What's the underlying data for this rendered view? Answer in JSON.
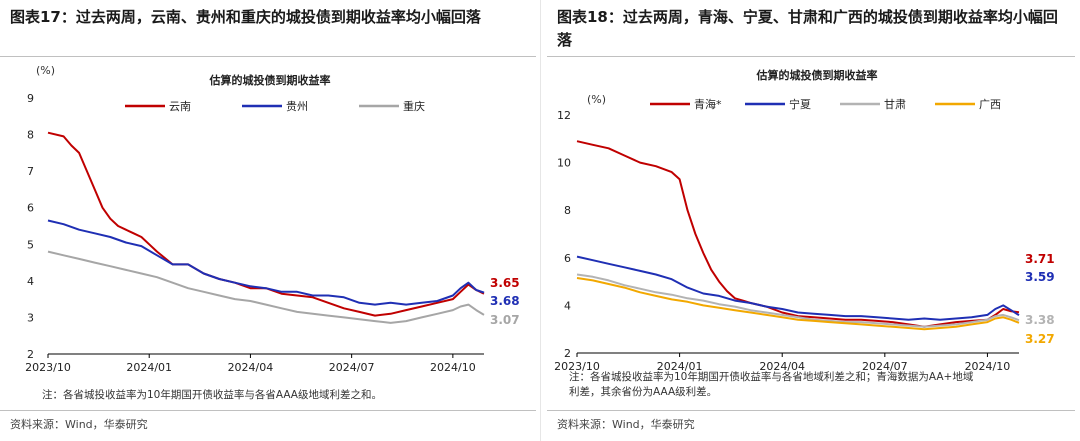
{
  "left": {
    "title": "图表17：过去两周，云南、贵州和重庆的城投债到期收益率均小幅回落",
    "note": "注：各省城投收益率为10年期国开债收益率与各省AAA级地域利差之和。",
    "source": "资料来源：Wind，华泰研究",
    "chart_data": {
      "type": "line",
      "title": "估算的城投债到期收益率",
      "ylabel": "(%)",
      "ylim": [
        2,
        9
      ],
      "yticks": [
        2,
        3,
        4,
        5,
        6,
        7,
        8,
        9
      ],
      "xlim": [
        0,
        56
      ],
      "xticks": [
        {
          "pos": 0,
          "label": "2023/10"
        },
        {
          "pos": 13,
          "label": "2024/01"
        },
        {
          "pos": 26,
          "label": "2024/04"
        },
        {
          "pos": 39,
          "label": "2024/07"
        },
        {
          "pos": 52,
          "label": "2024/10"
        }
      ],
      "series": [
        {
          "name": "云南",
          "color": "#c00000",
          "end_label": "3.65",
          "x": [
            0,
            2,
            3,
            4,
            5,
            6,
            7,
            8,
            9,
            10,
            11,
            12,
            13,
            14,
            16,
            18,
            20,
            22,
            24,
            26,
            28,
            30,
            32,
            34,
            36,
            38,
            40,
            42,
            44,
            46,
            48,
            50,
            52,
            53,
            54,
            55,
            56
          ],
          "y": [
            8.05,
            7.95,
            7.7,
            7.5,
            7.0,
            6.5,
            6.0,
            5.7,
            5.5,
            5.4,
            5.3,
            5.2,
            5.0,
            4.8,
            4.45,
            4.45,
            4.2,
            4.05,
            3.95,
            3.8,
            3.8,
            3.65,
            3.6,
            3.55,
            3.4,
            3.25,
            3.15,
            3.05,
            3.1,
            3.2,
            3.3,
            3.4,
            3.5,
            3.7,
            3.9,
            3.75,
            3.65
          ]
        },
        {
          "name": "贵州",
          "color": "#1f2fb4",
          "end_label": "3.68",
          "x": [
            0,
            2,
            4,
            6,
            8,
            10,
            12,
            14,
            16,
            18,
            20,
            22,
            24,
            26,
            28,
            30,
            32,
            34,
            36,
            38,
            40,
            42,
            44,
            46,
            48,
            50,
            52,
            53,
            54,
            55,
            56
          ],
          "y": [
            5.65,
            5.55,
            5.4,
            5.3,
            5.2,
            5.05,
            4.95,
            4.7,
            4.45,
            4.45,
            4.2,
            4.05,
            3.95,
            3.85,
            3.8,
            3.7,
            3.7,
            3.6,
            3.6,
            3.55,
            3.4,
            3.35,
            3.4,
            3.35,
            3.4,
            3.45,
            3.6,
            3.8,
            3.95,
            3.75,
            3.68
          ]
        },
        {
          "name": "重庆",
          "color": "#a6a6a6",
          "end_label": "3.07",
          "x": [
            0,
            2,
            4,
            6,
            8,
            10,
            12,
            14,
            16,
            18,
            20,
            22,
            24,
            26,
            28,
            30,
            32,
            34,
            36,
            38,
            40,
            42,
            44,
            46,
            48,
            50,
            52,
            53,
            54,
            55,
            56
          ],
          "y": [
            4.8,
            4.7,
            4.6,
            4.5,
            4.4,
            4.3,
            4.2,
            4.1,
            3.95,
            3.8,
            3.7,
            3.6,
            3.5,
            3.45,
            3.35,
            3.25,
            3.15,
            3.1,
            3.05,
            3.0,
            2.95,
            2.9,
            2.85,
            2.9,
            3.0,
            3.1,
            3.2,
            3.3,
            3.35,
            3.2,
            3.07
          ]
        }
      ]
    }
  },
  "right": {
    "title": "图表18：过去两周，青海、宁夏、甘肃和广西的城投债到期收益率均小幅回落",
    "note_lines": [
      "注：各省城投收益率为10年期国开债收益率与各省地域利差之和；青海数据为AA+地域",
      "利差，其余省份为AAA级利差。"
    ],
    "source": "资料来源：Wind，华泰研究",
    "chart_data": {
      "type": "line",
      "title": "估算的城投债到期收益率",
      "ylabel": "(%)",
      "ylim": [
        2,
        12
      ],
      "yticks": [
        2,
        4,
        6,
        8,
        10,
        12
      ],
      "xlim": [
        0,
        56
      ],
      "xticks": [
        {
          "pos": 0,
          "label": "2023/10"
        },
        {
          "pos": 13,
          "label": "2024/01"
        },
        {
          "pos": 26,
          "label": "2024/04"
        },
        {
          "pos": 39,
          "label": "2024/07"
        },
        {
          "pos": 52,
          "label": "2024/10"
        }
      ],
      "series": [
        {
          "name": "青海*",
          "color": "#c00000",
          "end_label": "3.71",
          "x": [
            0,
            2,
            4,
            6,
            8,
            10,
            12,
            13,
            14,
            15,
            16,
            17,
            18,
            19,
            20,
            21,
            22,
            24,
            26,
            28,
            30,
            32,
            34,
            36,
            38,
            40,
            42,
            44,
            46,
            48,
            50,
            52,
            53,
            54,
            55,
            56
          ],
          "y": [
            10.9,
            10.75,
            10.6,
            10.3,
            10.0,
            9.85,
            9.6,
            9.3,
            8.0,
            7.0,
            6.2,
            5.5,
            5.0,
            4.6,
            4.3,
            4.2,
            4.1,
            3.95,
            3.7,
            3.55,
            3.5,
            3.45,
            3.4,
            3.4,
            3.35,
            3.3,
            3.2,
            3.1,
            3.2,
            3.3,
            3.35,
            3.4,
            3.6,
            3.85,
            3.75,
            3.71
          ]
        },
        {
          "name": "宁夏",
          "color": "#1f2fb4",
          "end_label": "3.59",
          "x": [
            0,
            2,
            4,
            6,
            8,
            10,
            12,
            14,
            16,
            18,
            20,
            22,
            24,
            26,
            28,
            30,
            32,
            34,
            36,
            38,
            40,
            42,
            44,
            46,
            48,
            50,
            52,
            53,
            54,
            55,
            56
          ],
          "y": [
            6.05,
            5.9,
            5.75,
            5.6,
            5.45,
            5.3,
            5.1,
            4.75,
            4.5,
            4.4,
            4.2,
            4.1,
            3.95,
            3.85,
            3.7,
            3.65,
            3.6,
            3.55,
            3.55,
            3.5,
            3.45,
            3.4,
            3.45,
            3.4,
            3.45,
            3.5,
            3.6,
            3.85,
            4.0,
            3.8,
            3.59
          ]
        },
        {
          "name": "甘肃",
          "color": "#b3b3b3",
          "end_label": "3.38",
          "x": [
            0,
            2,
            4,
            6,
            8,
            10,
            12,
            14,
            16,
            18,
            20,
            22,
            24,
            26,
            28,
            30,
            32,
            34,
            36,
            38,
            40,
            42,
            44,
            46,
            48,
            50,
            52,
            53,
            54,
            55,
            56
          ],
          "y": [
            5.3,
            5.2,
            5.05,
            4.85,
            4.7,
            4.55,
            4.45,
            4.3,
            4.2,
            4.05,
            3.95,
            3.8,
            3.7,
            3.6,
            3.5,
            3.4,
            3.35,
            3.3,
            3.3,
            3.25,
            3.2,
            3.15,
            3.1,
            3.15,
            3.2,
            3.3,
            3.4,
            3.55,
            3.6,
            3.5,
            3.38
          ]
        },
        {
          "name": "广西",
          "color": "#f2a800",
          "end_label": "3.27",
          "x": [
            0,
            2,
            4,
            6,
            8,
            10,
            12,
            14,
            16,
            18,
            20,
            22,
            24,
            26,
            28,
            30,
            32,
            34,
            36,
            38,
            40,
            42,
            44,
            46,
            48,
            50,
            52,
            53,
            54,
            55,
            56
          ],
          "y": [
            5.15,
            5.05,
            4.9,
            4.75,
            4.55,
            4.4,
            4.25,
            4.15,
            4.0,
            3.9,
            3.8,
            3.7,
            3.6,
            3.5,
            3.4,
            3.35,
            3.3,
            3.25,
            3.2,
            3.15,
            3.1,
            3.05,
            3.0,
            3.05,
            3.1,
            3.2,
            3.3,
            3.45,
            3.5,
            3.4,
            3.27
          ]
        }
      ]
    }
  }
}
